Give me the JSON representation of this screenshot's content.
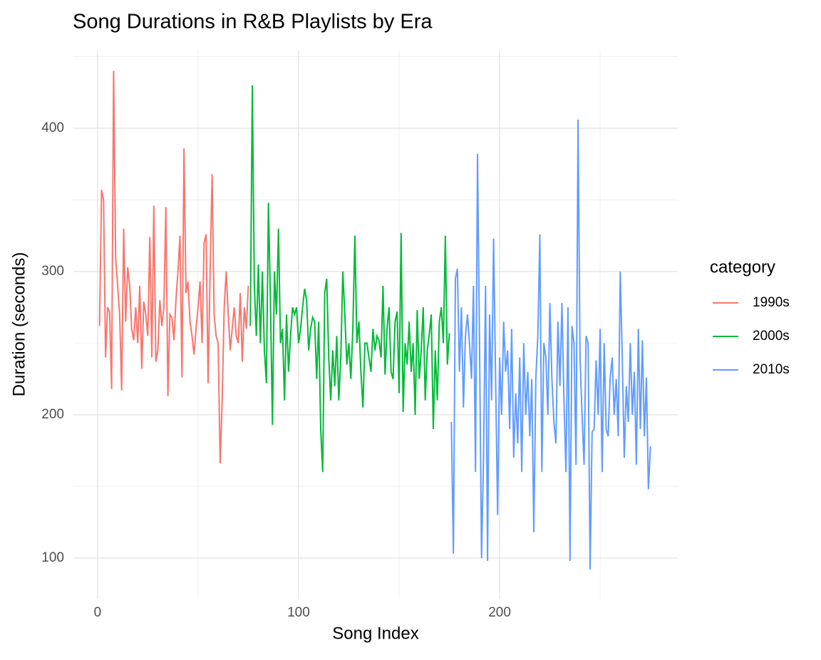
{
  "chart_data": {
    "type": "line",
    "title": "Song Durations in R&B Playlists by Era",
    "x_label": "Song Index",
    "y_label": "Duration (seconds)",
    "legend_title": "category",
    "legend_position": "right",
    "grid": true,
    "xlim": [
      -12,
      288.6
    ],
    "ylim": [
      71.6,
      454.7
    ],
    "xticks": [
      0,
      100,
      200
    ],
    "yticks": [
      100,
      200,
      300,
      400
    ],
    "minor_xticks": [
      50,
      150,
      250
    ],
    "minor_yticks": [
      150,
      250,
      350,
      450
    ],
    "series": [
      {
        "name": "1990s",
        "color": "#F8766D",
        "x": [
          1,
          2,
          3,
          4,
          5,
          6,
          7,
          8,
          9,
          10,
          11,
          12,
          13,
          14,
          15,
          16,
          17,
          18,
          19,
          20,
          21,
          22,
          23,
          24,
          25,
          26,
          27,
          28,
          29,
          30,
          31,
          32,
          33,
          34,
          35,
          36,
          37,
          38,
          39,
          40,
          41,
          42,
          43,
          44,
          45,
          46,
          47,
          48,
          49,
          50,
          51,
          52,
          53,
          54,
          55,
          56,
          57,
          58,
          59,
          60,
          61,
          62,
          63,
          64,
          65,
          66,
          67,
          68,
          69,
          70,
          71,
          72,
          73,
          74,
          75
        ],
        "values": [
          262,
          357,
          350,
          240,
          275,
          272,
          218,
          440,
          310,
          290,
          270,
          217,
          330,
          265,
          303,
          290,
          260,
          252,
          275,
          250,
          290,
          232,
          279,
          270,
          255,
          324,
          240,
          346,
          237,
          245,
          280,
          262,
          275,
          345,
          213,
          270,
          268,
          252,
          280,
          300,
          325,
          226,
          386,
          285,
          293,
          265,
          255,
          242,
          260,
          275,
          293,
          250,
          320,
          326,
          222,
          300,
          368,
          270,
          255,
          250,
          166,
          210,
          275,
          300,
          270,
          245,
          260,
          275,
          255,
          250,
          285,
          237,
          275,
          260,
          290
        ]
      },
      {
        "name": "2000s",
        "color": "#00BA38",
        "x": [
          76,
          77,
          78,
          79,
          80,
          81,
          82,
          83,
          84,
          85,
          86,
          87,
          88,
          89,
          90,
          91,
          92,
          93,
          94,
          95,
          96,
          97,
          98,
          99,
          100,
          101,
          102,
          103,
          104,
          105,
          106,
          107,
          108,
          109,
          110,
          111,
          112,
          113,
          114,
          115,
          116,
          117,
          118,
          119,
          120,
          121,
          122,
          123,
          124,
          125,
          126,
          127,
          128,
          129,
          130,
          131,
          132,
          133,
          134,
          135,
          136,
          137,
          138,
          139,
          140,
          141,
          142,
          143,
          144,
          145,
          146,
          147,
          148,
          149,
          150,
          151,
          152,
          153,
          154,
          155,
          156,
          157,
          158,
          159,
          160,
          161,
          162,
          163,
          164,
          165,
          166,
          167,
          168,
          169,
          170,
          171,
          172,
          173,
          174,
          175
        ],
        "values": [
          262,
          430,
          290,
          255,
          305,
          250,
          300,
          245,
          222,
          348,
          280,
          193,
          300,
          270,
          330,
          250,
          260,
          210,
          270,
          230,
          255,
          275,
          270,
          275,
          250,
          260,
          275,
          288,
          280,
          245,
          260,
          268,
          265,
          225,
          265,
          190,
          160,
          285,
          295,
          240,
          210,
          245,
          220,
          255,
          210,
          240,
          300,
          270,
          235,
          250,
          225,
          260,
          325,
          250,
          265,
          230,
          205,
          250,
          250,
          240,
          230,
          260,
          245,
          255,
          252,
          240,
          290,
          228,
          260,
          275,
          230,
          225,
          265,
          272,
          215,
          327,
          202,
          250,
          235,
          265,
          230,
          250,
          200,
          273,
          225,
          245,
          275,
          210,
          245,
          256,
          270,
          190,
          245,
          210,
          265,
          275,
          250,
          325,
          235,
          257
        ]
      },
      {
        "name": "2010s",
        "color": "#619CFF",
        "x": [
          176,
          177,
          178,
          179,
          180,
          181,
          182,
          183,
          184,
          185,
          186,
          187,
          188,
          189,
          190,
          191,
          192,
          193,
          194,
          195,
          196,
          197,
          198,
          199,
          200,
          201,
          202,
          203,
          204,
          205,
          206,
          207,
          208,
          209,
          210,
          211,
          212,
          213,
          214,
          215,
          216,
          217,
          218,
          219,
          220,
          221,
          222,
          223,
          224,
          225,
          226,
          227,
          228,
          229,
          230,
          231,
          232,
          233,
          234,
          235,
          236,
          237,
          238,
          239,
          240,
          241,
          242,
          243,
          244,
          245,
          246,
          247,
          248,
          249,
          250,
          251,
          252,
          253,
          254,
          255,
          256,
          257,
          258,
          259,
          260,
          261,
          262,
          263,
          264,
          265,
          266,
          267,
          268,
          269,
          270,
          271,
          272,
          273,
          274,
          275
        ],
        "values": [
          195,
          103,
          295,
          302,
          230,
          275,
          205,
          255,
          270,
          250,
          225,
          290,
          160,
          382,
          250,
          100,
          170,
          290,
          98,
          270,
          210,
          323,
          225,
          130,
          240,
          200,
          265,
          230,
          245,
          190,
          260,
          170,
          215,
          180,
          240,
          160,
          250,
          200,
          230,
          185,
          225,
          118,
          225,
          255,
          326,
          160,
          250,
          240,
          200,
          278,
          225,
          195,
          180,
          265,
          220,
          278,
          210,
          160,
          275,
          98,
          262,
          250,
          165,
          406,
          240,
          200,
          165,
          255,
          250,
          92,
          188,
          190,
          238,
          200,
          260,
          160,
          250,
          190,
          185,
          226,
          240,
          200,
          225,
          185,
          300,
          240,
          170,
          220,
          195,
          250,
          200,
          230,
          165,
          260,
          190,
          252,
          185,
          226,
          148,
          178
        ]
      }
    ]
  }
}
